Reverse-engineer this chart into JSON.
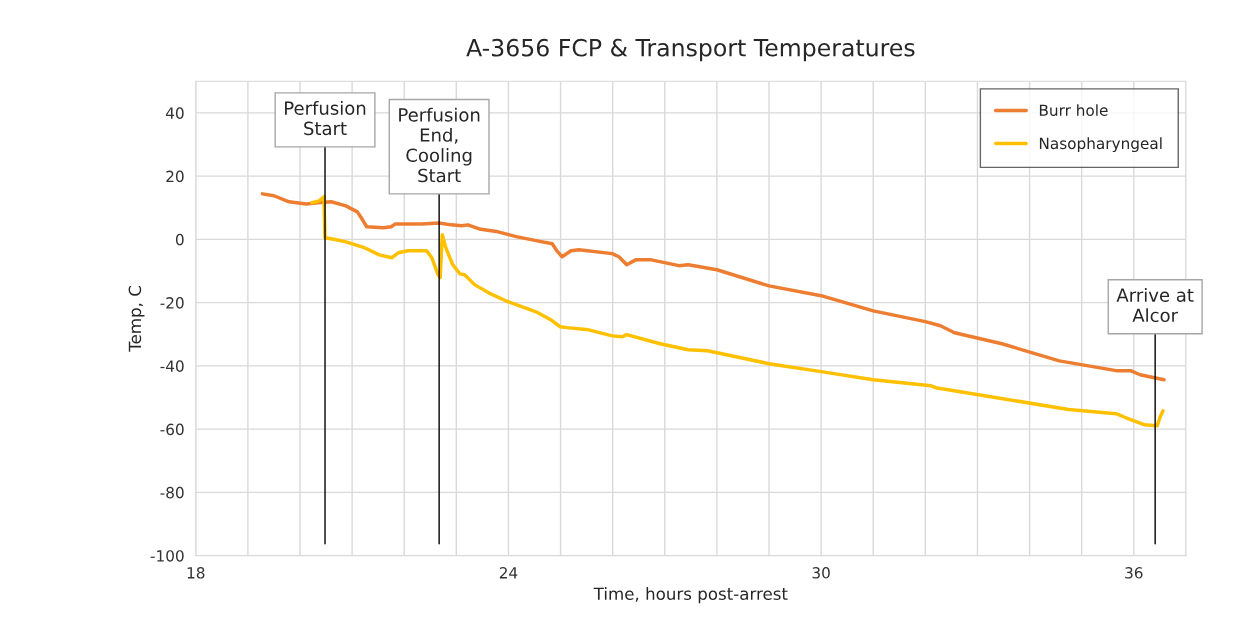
{
  "chart_data": {
    "type": "line",
    "title": "A-3656 FCP & Transport Temperatures",
    "xlabel": "Time, hours post-arrest",
    "ylabel": "Temp, C",
    "xlim": [
      18,
      37
    ],
    "ylim": [
      -100,
      50
    ],
    "xticks": [
      18,
      {
        "value": 19,
        "label": null
      },
      {
        "value": 20,
        "label": null
      },
      {
        "value": 21,
        "label": null
      },
      {
        "value": 22,
        "label": null
      },
      {
        "value": 23,
        "label": null
      },
      24,
      {
        "value": 25,
        "label": null
      },
      {
        "value": 26,
        "label": null
      },
      {
        "value": 27,
        "label": null
      },
      {
        "value": 28,
        "label": null
      },
      {
        "value": 29,
        "label": null
      },
      30,
      {
        "value": 31,
        "label": null
      },
      {
        "value": 32,
        "label": null
      },
      {
        "value": 33,
        "label": null
      },
      {
        "value": 34,
        "label": null
      },
      {
        "value": 35,
        "label": null
      },
      36,
      {
        "value": 37,
        "label": null
      }
    ],
    "yticks": [
      -100,
      -80,
      -60,
      -40,
      -20,
      0,
      20,
      40
    ],
    "grid": true,
    "legend": "top right",
    "marker": "none",
    "line_style": "solid",
    "series": [
      {
        "name": "Burr hole",
        "color": "#ed7d31",
        "x": [
          19.28,
          19.5,
          19.79,
          20.12,
          20.34,
          20.6,
          20.88,
          21.1,
          21.2,
          21.28,
          21.6,
          21.75,
          21.83,
          22.34,
          22.67,
          22.9,
          23.1,
          23.22,
          23.44,
          23.8,
          24.17,
          24.53,
          24.84,
          24.93,
          25.03,
          25.2,
          25.35,
          25.99,
          26.12,
          26.27,
          26.45,
          26.72,
          27.27,
          27.45,
          28.0,
          29.0,
          30.0,
          31.0,
          32.0,
          32.29,
          32.56,
          33.47,
          34.57,
          35.66,
          35.94,
          36.12,
          36.58
        ],
        "values": [
          14.4,
          13.8,
          11.9,
          11.2,
          11.6,
          11.9,
          10.6,
          8.7,
          6.2,
          4.0,
          3.7,
          4.0,
          4.9,
          4.9,
          5.2,
          4.6,
          4.3,
          4.6,
          3.3,
          2.4,
          0.8,
          -0.4,
          -1.4,
          -3.6,
          -5.5,
          -3.6,
          -3.3,
          -4.5,
          -5.5,
          -8.0,
          -6.4,
          -6.4,
          -8.3,
          -8.0,
          -9.6,
          -14.7,
          -17.8,
          -22.6,
          -26.0,
          -27.3,
          -29.5,
          -33.0,
          -38.4,
          -41.5,
          -41.5,
          -42.8,
          -44.4
        ]
      },
      {
        "name": "Nasopharyngeal",
        "color": "#ffc000",
        "x": [
          20.23,
          20.37,
          20.46,
          20.48,
          20.7,
          20.88,
          21.25,
          21.52,
          21.76,
          21.89,
          22.07,
          22.43,
          22.53,
          22.65,
          22.69,
          22.73,
          22.8,
          22.93,
          23.07,
          23.16,
          23.35,
          23.62,
          23.99,
          24.53,
          24.81,
          24.99,
          25.12,
          25.54,
          25.99,
          26.18,
          26.27,
          26.91,
          27.45,
          27.82,
          29.0,
          30.0,
          31.0,
          32.11,
          32.2,
          33.02,
          34.75,
          35.66,
          35.85,
          36.2,
          36.45,
          36.5,
          36.56
        ],
        "values": [
          11.6,
          12.2,
          13.5,
          0.5,
          -0.1,
          -0.8,
          -2.7,
          -4.9,
          -5.8,
          -4.2,
          -3.6,
          -3.6,
          -5.8,
          -11.2,
          -12.1,
          1.5,
          -2.7,
          -8.0,
          -10.9,
          -11.2,
          -14.3,
          -16.9,
          -19.7,
          -22.9,
          -25.4,
          -27.6,
          -27.9,
          -28.6,
          -30.5,
          -30.8,
          -30.1,
          -33.0,
          -34.9,
          -35.2,
          -39.3,
          -41.8,
          -44.4,
          -46.3,
          -46.9,
          -49.1,
          -53.8,
          -55.1,
          -56.4,
          -58.6,
          -58.9,
          -56.4,
          -54.2
        ]
      }
    ],
    "ref_lines": [
      {
        "axis": "x",
        "value": 20.48,
        "color": "#000000"
      },
      {
        "axis": "x",
        "value": 22.67,
        "color": "#000000"
      },
      {
        "axis": "x",
        "value": 36.41,
        "color": "#000000"
      }
    ],
    "annotations": [
      {
        "text": "Perfusion\nStart",
        "x": 20.48,
        "y": 37.8
      },
      {
        "text": "Perfusion\nEnd,\nCooling\nStart",
        "x": 22.67,
        "y": 29.3
      },
      {
        "text": "Arrive at\nAlcor",
        "x": 36.41,
        "y": -21.3
      }
    ]
  }
}
